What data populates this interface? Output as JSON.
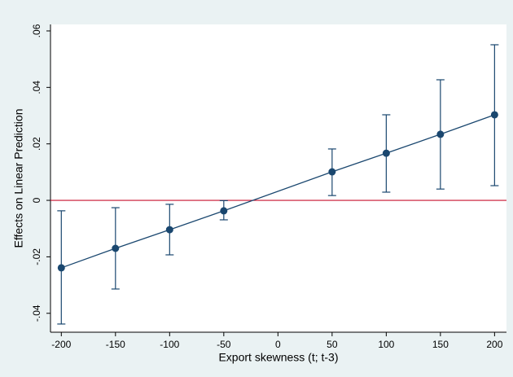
{
  "chart_data": {
    "type": "errorbar-line",
    "xlabel": "Export skewness (t; t-3)",
    "ylabel": "Effects on Linear Prediction",
    "x": [
      -200,
      -150,
      -100,
      -50,
      50,
      100,
      150,
      200
    ],
    "series": [
      {
        "color": "#1a476f",
        "values": [
          -0.0239,
          -0.017,
          -0.0104,
          -0.0037,
          0.0101,
          0.0167,
          0.0234,
          0.0303
        ],
        "lower": [
          -0.0438,
          -0.0314,
          -0.0193,
          -0.0069,
          0.0017,
          0.0029,
          0.004,
          0.0052
        ],
        "upper": [
          -0.0037,
          -0.0026,
          -0.0014,
          -0.0001,
          0.0182,
          0.0303,
          0.0427,
          0.0551
        ]
      }
    ],
    "reference_line": {
      "value": 0,
      "color": "#c8102e"
    },
    "xlim": [
      -210,
      211
    ],
    "xticks": [
      -200,
      -150,
      -100,
      -50,
      0,
      50,
      100,
      150,
      200
    ],
    "ylim": [
      -0.0467,
      0.0623
    ],
    "yticks": [
      {
        "value": -0.04,
        "label": "-.04"
      },
      {
        "value": -0.02,
        "label": "-.02"
      },
      0,
      {
        "value": 0.02,
        "label": ".02"
      },
      {
        "value": 0.04,
        "label": ".04"
      },
      {
        "value": 0.06,
        "label": ".06"
      }
    ],
    "grid": false
  }
}
